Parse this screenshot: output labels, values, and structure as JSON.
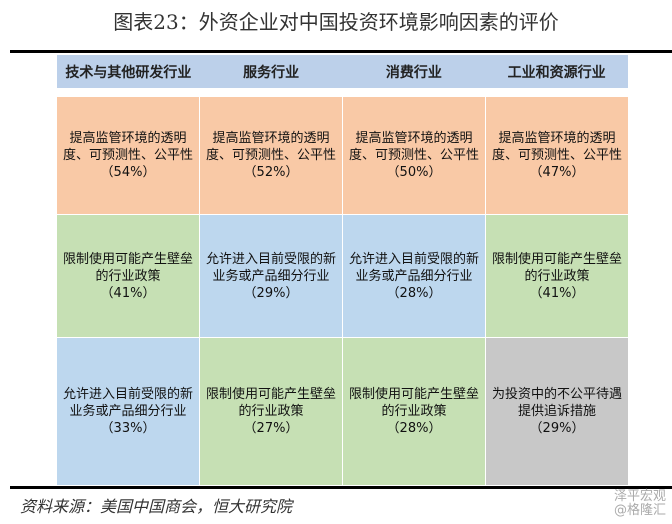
{
  "title": "图表23：外资企业对中国投资环境影响因素的评价",
  "headers": [
    "技术与其他研发行业",
    "服务行业",
    "消费行业",
    "工业和资源行业"
  ],
  "rows": [
    [
      {
        "text": "提高监管环境的透明度、可预测性、公平性",
        "pct": "（54%）",
        "color": "o"
      },
      {
        "text": "提高监管环境的透明度、可预测性、公平性",
        "pct": "（52%）",
        "color": "o"
      },
      {
        "text": "提高监管环境的透明度、可预测性、公平性",
        "pct": "（50%）",
        "color": "o"
      },
      {
        "text": "提高监管环境的透明度、可预测性、公平性",
        "pct": "（47%）",
        "color": "o"
      }
    ],
    [
      {
        "text": "限制使用可能产生壁垒的行业政策",
        "pct": "（41%）",
        "color": "g"
      },
      {
        "text": "允许进入目前受限的新业务或产品细分行业",
        "pct": "（29%）",
        "color": "b"
      },
      {
        "text": "允许进入目前受限的新业务或产品细分行业",
        "pct": "（28%）",
        "color": "b"
      },
      {
        "text": "限制使用可能产生壁垒的行业政策",
        "pct": "（41%）",
        "color": "g"
      }
    ],
    [
      {
        "text": "允许进入目前受限的新业务或产品细分行业",
        "pct": "（33%）",
        "color": "b"
      },
      {
        "text": "限制使用可能产生壁垒的行业政策",
        "pct": "（27%）",
        "color": "g"
      },
      {
        "text": "限制使用可能产生壁垒的行业政策",
        "pct": "（28%）",
        "color": "g"
      },
      {
        "text": "为投资中的不公平待遇提供追诉措施",
        "pct": "（29%）",
        "color": "y"
      }
    ]
  ],
  "source": "资料来源：美国中国商会，恒大研究院",
  "watermark": {
    "line1": "泽平宏观",
    "line2": "@格隆汇"
  }
}
